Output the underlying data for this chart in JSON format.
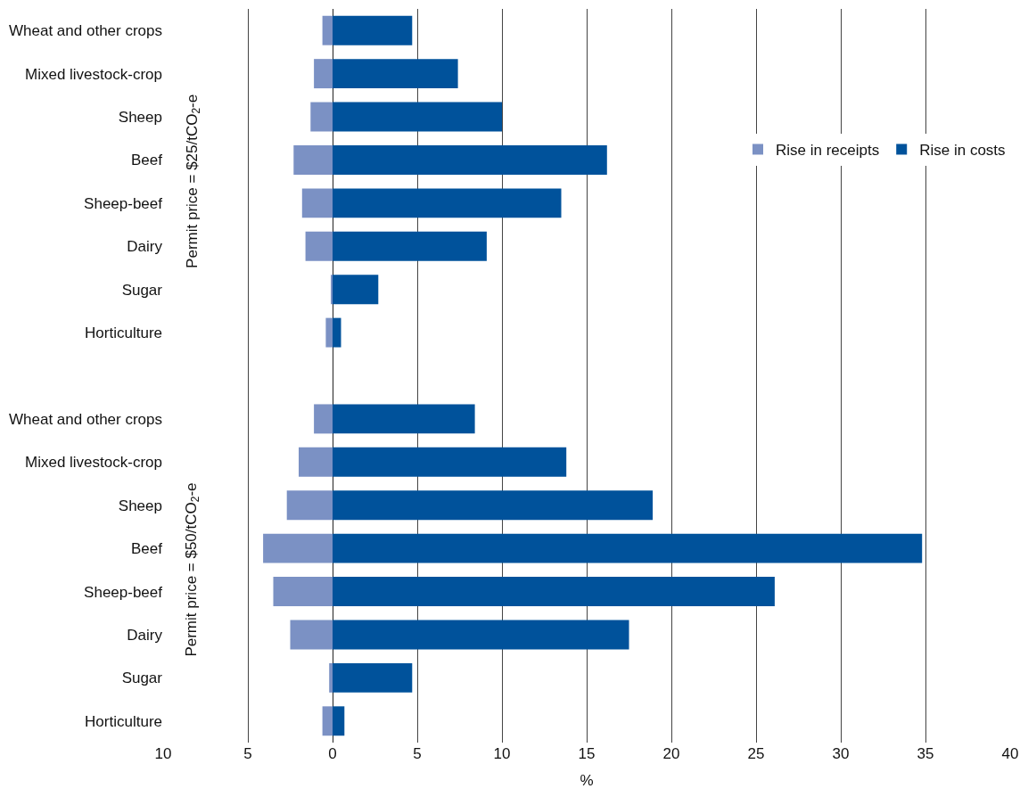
{
  "chart_data": {
    "type": "bar",
    "orientation": "horizontal",
    "xlabel": "%",
    "categories": [
      "Wheat and other crops",
      "Mixed livestock-crop",
      "Sheep",
      "Beef",
      "Sheep-beef",
      "Dairy",
      "Sugar",
      "Horticulture",
      null,
      "Wheat and other crops",
      "Mixed livestock-crop",
      "Sheep",
      "Beef",
      "Sheep-beef",
      "Dairy",
      "Sugar",
      "Horticulture"
    ],
    "series": [
      {
        "name": "Rise in receipts",
        "color": "#7b91c4",
        "values": [
          -0.6,
          -1.1,
          -1.3,
          -2.3,
          -1.8,
          -1.6,
          -0.1,
          -0.4,
          null,
          -1.1,
          -2.0,
          -2.7,
          -4.1,
          -3.5,
          -2.5,
          -0.2,
          -0.6
        ]
      },
      {
        "name": "Rise in costs",
        "color": "#00529b",
        "values": [
          4.7,
          7.4,
          10.0,
          16.2,
          13.5,
          9.1,
          2.7,
          0.5,
          null,
          8.4,
          13.8,
          18.9,
          34.8,
          26.1,
          17.5,
          4.7,
          0.7
        ]
      }
    ],
    "annotations": [
      "Permit price = $25/tCO$_{2}$-e",
      "Permit price = $50/tCO$_{2}$-e"
    ],
    "xlim": [
      -10,
      40
    ],
    "xticks": [
      {
        "value": -10,
        "label": "10"
      },
      {
        "value": -5,
        "label": "5"
      },
      0,
      5,
      10,
      15,
      20,
      25,
      30,
      35,
      40
    ],
    "grid": "x",
    "legend": "top right",
    "stacked": true
  }
}
